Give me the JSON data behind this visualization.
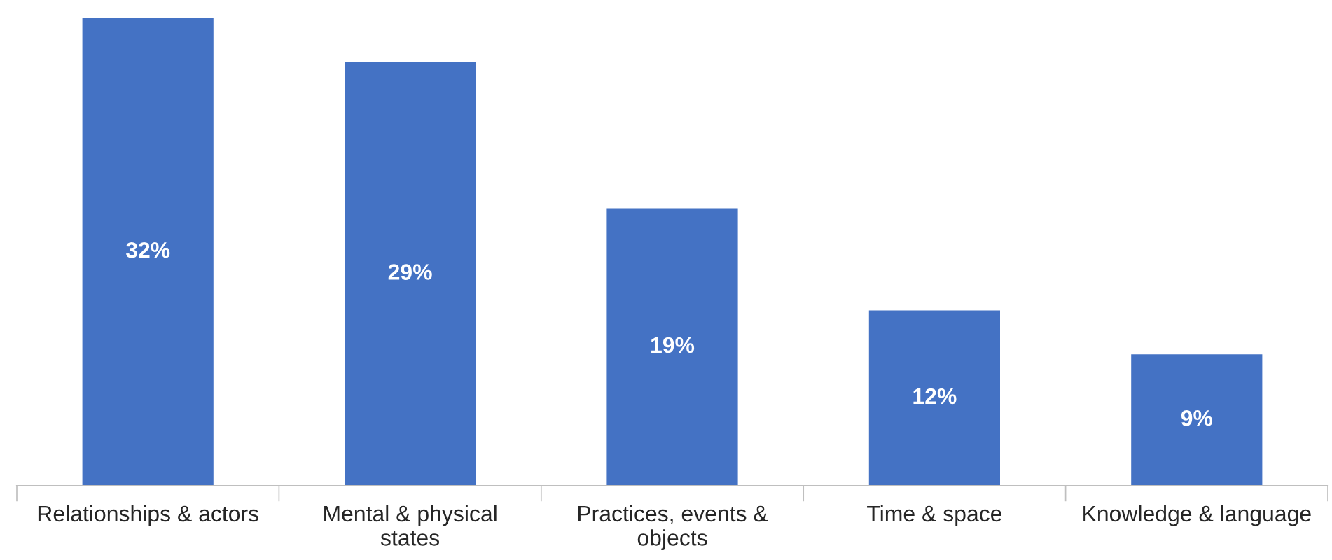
{
  "chart_data": {
    "type": "bar",
    "categories": [
      "Relationships & actors",
      "Mental & physical\nstates",
      "Practices, events &\nobjects",
      "Time & space",
      "Knowledge & language"
    ],
    "values": [
      32,
      29,
      19,
      12,
      9
    ],
    "value_labels": [
      "32%",
      "29%",
      "19%",
      "12%",
      "9%"
    ],
    "color": "#4472c4",
    "grid": false,
    "legend": false
  }
}
